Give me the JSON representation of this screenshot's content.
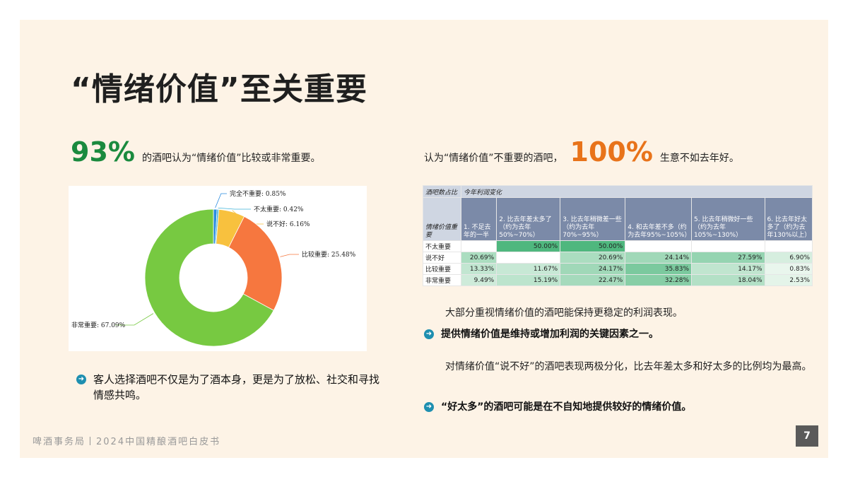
{
  "title": "“情绪价值”至关重要",
  "left_stat": {
    "value": "93%",
    "text": "的酒吧认为“情绪价值”比较或非常重要。",
    "color": "#1a8a3e"
  },
  "right_stat": {
    "prefix": "认为“情绪价值”不重要的酒吧，",
    "value": "100%",
    "suffix": "生意不如去年好。",
    "color": "#e8731a"
  },
  "chart_data": {
    "type": "pie",
    "donut": true,
    "slices": [
      {
        "label": "完全不重要",
        "value": 0.85,
        "display": "完全不重要: 0.85%",
        "color": "#2a8be0"
      },
      {
        "label": "不太重要",
        "value": 0.42,
        "display": "不太重要: 0.42%",
        "color": "#3fb3d8"
      },
      {
        "label": "说不好",
        "value": 6.16,
        "display": "说不好: 6.16%",
        "color": "#f8c13e"
      },
      {
        "label": "比较重要",
        "value": 25.48,
        "display": "比较重要: 25.48%",
        "color": "#f6773f"
      },
      {
        "label": "非常重要",
        "value": 67.09,
        "display": "非常重要: 67.09%",
        "color": "#77c941"
      }
    ]
  },
  "table": {
    "corner_top": "酒吧数占比",
    "group_header": "今年利润变化",
    "corner_bottom": "情绪价值重要",
    "columns": [
      "1. 不足去年的一半",
      "2. 比去年差太多了（约为去年50%~70%）",
      "3. 比去年稍微差一些（约为去年70%~95%）",
      "4. 和去年差不多（约为去年95%~105%）",
      "5. 比去年稍微好一些（约为去年105%~130%）",
      "6. 比去年好太多了（约为去年130%以上）"
    ],
    "rows": [
      {
        "label": "不太重要",
        "values": [
          "",
          "50.00%",
          "50.00%",
          "",
          "",
          ""
        ]
      },
      {
        "label": "说不好",
        "values": [
          "20.69%",
          "",
          "20.69%",
          "24.14%",
          "27.59%",
          "6.90%"
        ]
      },
      {
        "label": "比较重要",
        "values": [
          "13.33%",
          "11.67%",
          "24.17%",
          "35.83%",
          "14.17%",
          "0.83%"
        ]
      },
      {
        "label": "非常重要",
        "values": [
          "9.49%",
          "15.19%",
          "22.47%",
          "32.28%",
          "18.04%",
          "2.53%"
        ]
      }
    ]
  },
  "left_bullet": "客人选择酒吧不仅是为了酒本身，更是为了放松、社交和寻找情感共鸣。",
  "right_note1": "大部分重视情绪价值的酒吧能保持更稳定的利润表现。",
  "right_bullet1": "提供情绪价值是维持或增加利润的关键因素之一。",
  "right_note2": "对情绪价值“说不好”的酒吧表现两极分化，比去年差太多和好太多的比例均为最高。",
  "right_bullet2": "“好太多”的酒吧可能是在不自知地提供较好的情绪价值。",
  "footer": "啤酒事务局丨2024中国精酿酒吧白皮书",
  "page_number": "7",
  "icons": {
    "bullet": "arrow-circle-icon"
  }
}
